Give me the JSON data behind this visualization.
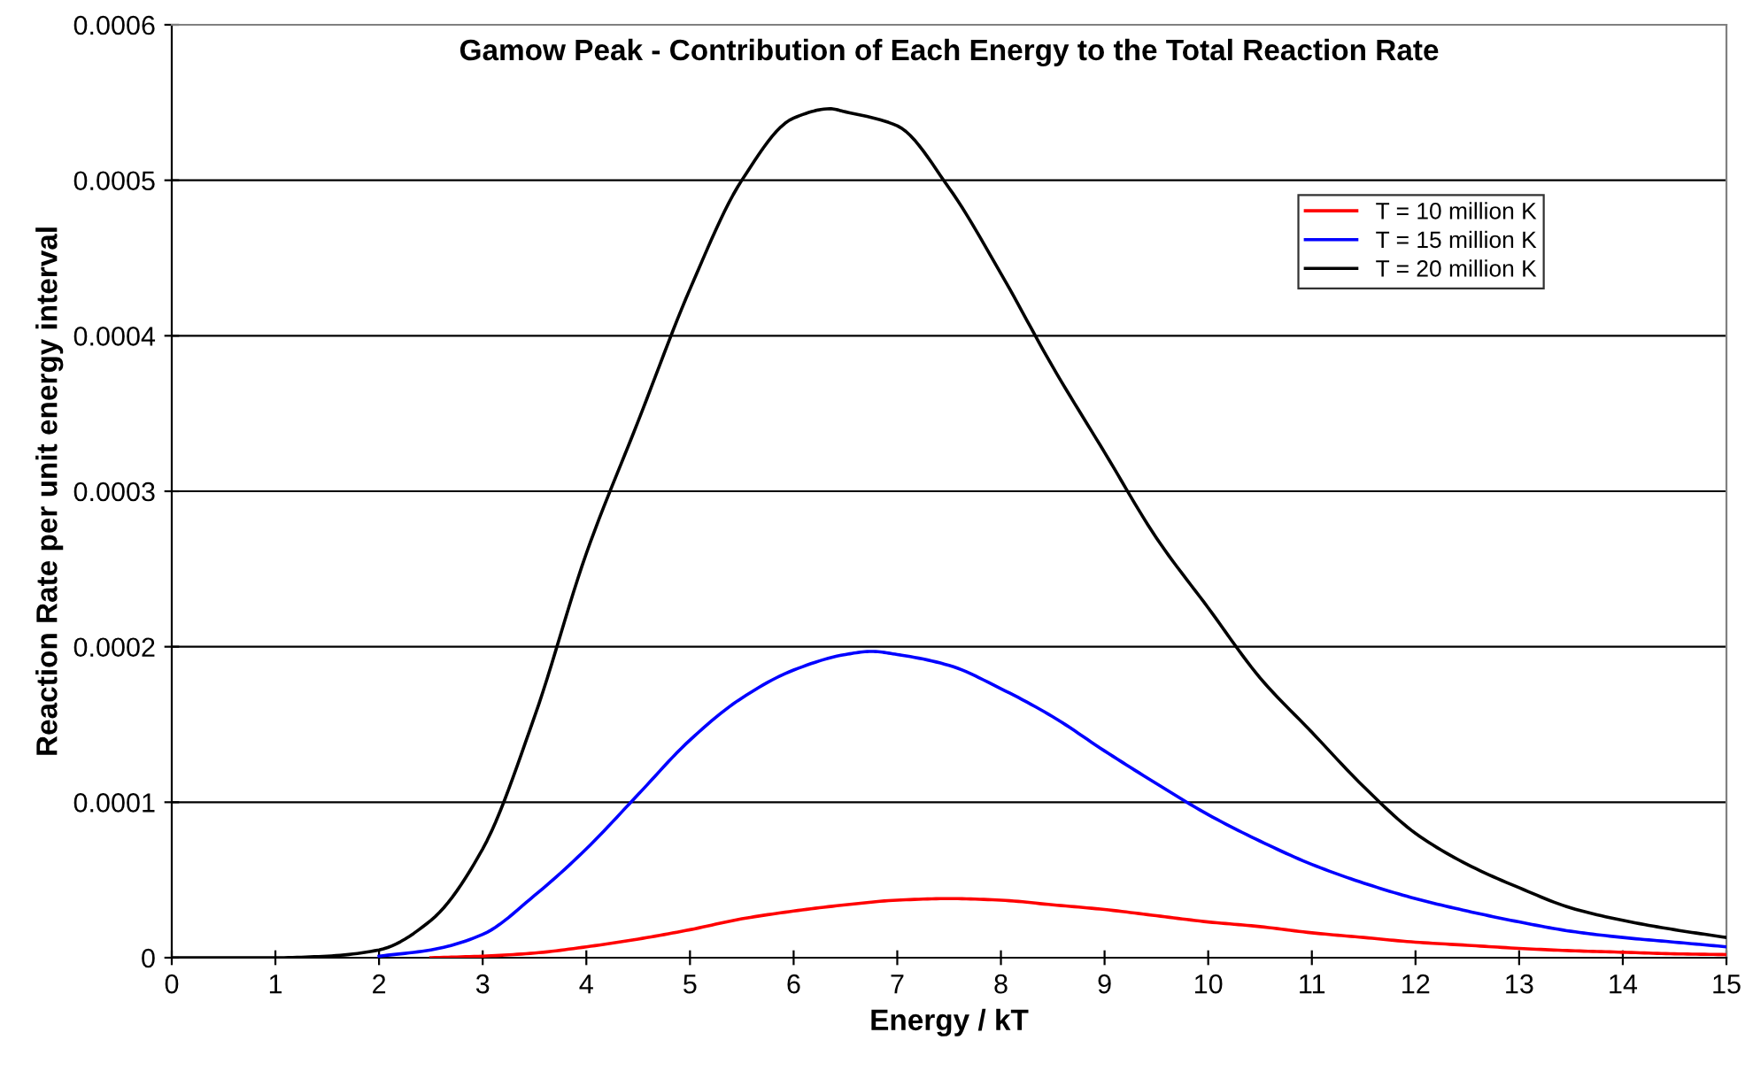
{
  "chart_data": {
    "type": "line",
    "title": "Gamow Peak - Contribution of Each Energy to the Total Reaction Rate",
    "xlabel": "Energy / kT",
    "ylabel": "Reaction Rate per unit energy interval",
    "xlim": [
      0,
      15
    ],
    "xticks": [
      0,
      1,
      2,
      3,
      4,
      5,
      6,
      7,
      8,
      9,
      10,
      11,
      12,
      13,
      14,
      15
    ],
    "ylim": [
      0,
      0.0006
    ],
    "yticks": [
      0,
      0.0001,
      0.0002,
      0.0003,
      0.0004,
      0.0005,
      0.0006
    ],
    "grid": "y",
    "legend": "top right",
    "line_style": "solid",
    "marker": "none",
    "series": [
      {
        "name": "T = 10 million K",
        "color": "#ff0000",
        "x": [
          2.5,
          3,
          3.5,
          4,
          4.5,
          5,
          5.5,
          6,
          6.5,
          7,
          7.5,
          8,
          8.5,
          9,
          9.5,
          10,
          10.5,
          11,
          11.5,
          12,
          12.5,
          13,
          13.5,
          14,
          14.5,
          15
        ],
        "values": [
          0,
          1e-06,
          3e-06,
          7e-06,
          1.2e-05,
          1.8e-05,
          2.5e-05,
          3e-05,
          3.4e-05,
          3.7e-05,
          3.8e-05,
          3.7e-05,
          3.4e-05,
          3.1e-05,
          2.7e-05,
          2.3e-05,
          2e-05,
          1.6e-05,
          1.3e-05,
          1e-05,
          8e-06,
          6e-06,
          4.5e-06,
          3.5e-06,
          2.5e-06,
          2e-06
        ]
      },
      {
        "name": "T = 15 million K",
        "color": "#0000ff",
        "x": [
          2,
          2.5,
          3,
          3.5,
          4,
          4.5,
          5,
          5.5,
          6,
          6.5,
          6.75,
          7,
          7.5,
          8,
          8.5,
          9,
          9.5,
          10,
          10.5,
          11,
          11.5,
          12,
          12.5,
          13,
          13.5,
          14,
          14.5,
          15
        ],
        "values": [
          1e-06,
          5e-06,
          1.5e-05,
          4e-05,
          7e-05,
          0.000105,
          0.00014,
          0.000167,
          0.000185,
          0.000195,
          0.000197,
          0.000195,
          0.000188,
          0.000173,
          0.000155,
          0.000133,
          0.000112,
          9.2e-05,
          7.5e-05,
          6e-05,
          4.8e-05,
          3.8e-05,
          3e-05,
          2.3e-05,
          1.7e-05,
          1.3e-05,
          1e-05,
          7e-06
        ]
      },
      {
        "name": "T = 20 million K",
        "color": "#000000",
        "x": [
          0,
          0.5,
          1,
          1.5,
          2,
          2.5,
          3,
          3.5,
          4,
          4.5,
          5,
          5.5,
          6,
          6.35,
          6.5,
          7,
          7.5,
          8,
          8.5,
          9,
          9.5,
          10,
          10.5,
          11,
          11.5,
          12,
          12.5,
          13,
          13.5,
          14,
          14.5,
          15
        ],
        "values": [
          0,
          0,
          0,
          1e-06,
          5e-06,
          2.4e-05,
          7e-05,
          0.000155,
          0.00026,
          0.000345,
          0.00043,
          0.0005,
          0.00054,
          0.000546,
          0.000544,
          0.000535,
          0.000495,
          0.00044,
          0.00038,
          0.000325,
          0.00027,
          0.000225,
          0.00018,
          0.000145,
          0.00011,
          8e-05,
          6e-05,
          4.5e-05,
          3.2e-05,
          2.4e-05,
          1.8e-05,
          1.3e-05
        ]
      }
    ]
  }
}
